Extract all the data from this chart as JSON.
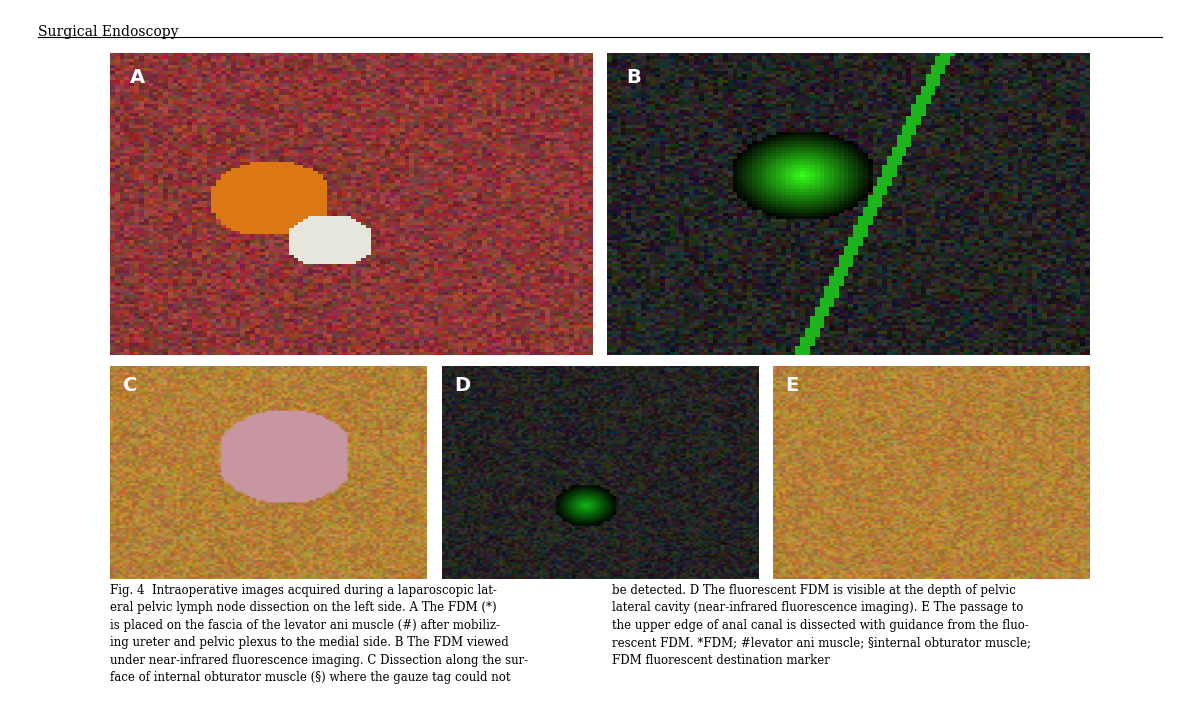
{
  "journal_title": "Surgical Endoscopy",
  "background_color": "#ffffff",
  "header_line_color": "#000000",
  "caption_left": "Fig. 4  Intraoperative images acquired during a laparoscopic lat-\neral pelvic lymph node dissection on the left side. A The FDM (*)\nis placed on the fascia of the levator ani muscle (#) after mobiliz-\ning ureter and pelvic plexus to the medial side. B The FDM viewed\nunder near-infrared fluorescence imaging. C Dissection along the sur-\nface of internal obturator muscle (§) where the gauze tag could not",
  "caption_right": "be detected. D The fluorescent FDM is visible at the depth of pelvic\nlateral cavity (near-infrared fluorescence imaging). E The passage to\nthe upper edge of anal canal is dissected with guidance from the fluo-\nrescent FDM. *FDM; #levator ani muscle; §internal obturator muscle;\nFDM fluorescent destination marker",
  "images": {
    "A": {
      "row": 0,
      "col": 0,
      "colspan": 1,
      "label": "A"
    },
    "B": {
      "row": 0,
      "col": 1,
      "colspan": 1,
      "label": "B"
    },
    "C": {
      "row": 1,
      "col": 0,
      "colspan": 1,
      "label": "C"
    },
    "D": {
      "row": 1,
      "col": 1,
      "colspan": 1,
      "label": "D"
    },
    "E": {
      "row": 1,
      "col": 2,
      "colspan": 1,
      "label": "E"
    }
  },
  "label_color": "#ffffff",
  "label_fontsize": 14,
  "journal_fontsize": 10,
  "caption_fontsize": 8.5
}
